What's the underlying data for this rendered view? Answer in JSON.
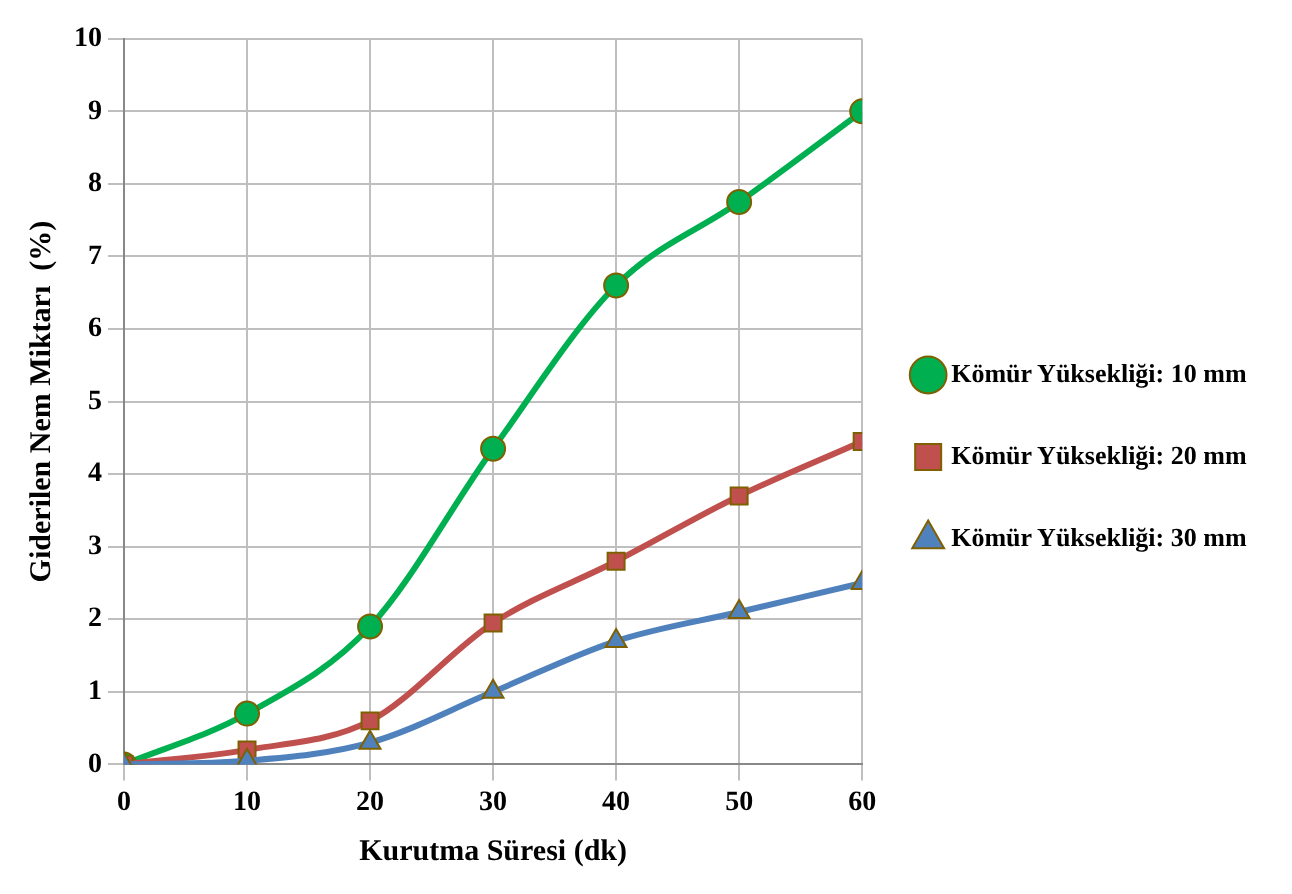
{
  "chart_data": {
    "type": "line",
    "xlabel": "Kurutma Süresi (dk)",
    "ylabel": "Giderilen Nem Miktarı  (%)",
    "x": [
      0,
      10,
      20,
      30,
      40,
      50,
      60
    ],
    "series": [
      {
        "name": "Kömür Yüksekliği: 10 mm",
        "color": "#00b050",
        "marker": "circle",
        "values": [
          0,
          0.7,
          1.9,
          4.35,
          6.6,
          7.75,
          9.0
        ]
      },
      {
        "name": "Kömür Yüksekliği: 20 mm",
        "color": "#c0504d",
        "marker": "square",
        "values": [
          0,
          0.2,
          0.6,
          1.95,
          2.8,
          3.7,
          4.45
        ]
      },
      {
        "name": "Kömür Yüksekliği: 30 mm",
        "color": "#4f81bd",
        "marker": "triangle",
        "values": [
          0,
          0.05,
          0.3,
          1.0,
          1.7,
          2.1,
          2.5
        ]
      }
    ],
    "xlim": [
      0,
      60
    ],
    "xticks": [
      0,
      10,
      20,
      30,
      40,
      50,
      60
    ],
    "ylim": [
      0,
      10
    ],
    "yticks": [
      0,
      1,
      2,
      3,
      4,
      5,
      6,
      7,
      8,
      9,
      10
    ],
    "grid": true,
    "legend": "right",
    "line_style": "solid"
  }
}
